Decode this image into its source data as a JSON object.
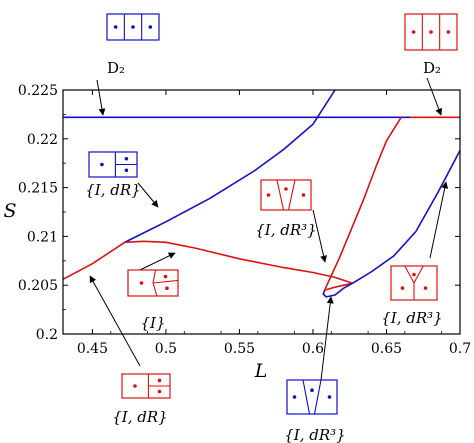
{
  "chart_data": {
    "type": "line",
    "xlabel": "L",
    "ylabel": "S",
    "xlim": [
      0.43,
      0.7
    ],
    "ylim": [
      0.2,
      0.225
    ],
    "x_ticks": [
      "0.45",
      "0.5",
      "0.55",
      "0.6",
      "0.65",
      "0.7"
    ],
    "y_ticks": [
      "0.2",
      "0.205",
      "0.21",
      "0.215",
      "0.22",
      "0.225"
    ],
    "x_tick_values": [
      0.45,
      0.5,
      0.55,
      0.6,
      0.65,
      0.7
    ],
    "y_tick_values": [
      0.2,
      0.205,
      0.21,
      0.215,
      0.22,
      0.225
    ],
    "grid": false,
    "colors": {
      "blue": "#1010c8",
      "red": "#e01010",
      "axis": "#000000"
    },
    "series": [
      {
        "color": "#1010c8",
        "points": [
          [
            0.43,
            0.2222
          ],
          [
            0.666,
            0.2222
          ]
        ]
      },
      {
        "color": "#e01010",
        "points": [
          [
            0.666,
            0.2222
          ],
          [
            0.7,
            0.2222
          ]
        ]
      },
      {
        "color": "#1010c8",
        "points": [
          [
            0.472,
            0.2094
          ],
          [
            0.5,
            0.2115
          ],
          [
            0.53,
            0.2139
          ],
          [
            0.56,
            0.2167
          ],
          [
            0.58,
            0.2189
          ],
          [
            0.6,
            0.2215
          ],
          [
            0.615,
            0.225
          ]
        ]
      },
      {
        "color": "#e01010",
        "points": [
          [
            0.43,
            0.2056
          ],
          [
            0.45,
            0.2072
          ],
          [
            0.472,
            0.2094
          ]
        ]
      },
      {
        "color": "#e01010",
        "points": [
          [
            0.472,
            0.2094
          ],
          [
            0.485,
            0.2095
          ],
          [
            0.5,
            0.2094
          ],
          [
            0.52,
            0.2088
          ],
          [
            0.55,
            0.2077
          ],
          [
            0.58,
            0.2068
          ],
          [
            0.6,
            0.2063
          ],
          [
            0.615,
            0.2058
          ],
          [
            0.627,
            0.2052
          ]
        ]
      },
      {
        "color": "#e01010",
        "points": [
          [
            0.627,
            0.2052
          ],
          [
            0.615,
            0.2048
          ],
          [
            0.608,
            0.2045
          ]
        ]
      },
      {
        "color": "#1010c8",
        "points": [
          [
            0.608,
            0.2045
          ],
          [
            0.607,
            0.2041
          ],
          [
            0.609,
            0.2038
          ],
          [
            0.615,
            0.204
          ],
          [
            0.621,
            0.2047
          ],
          [
            0.627,
            0.2052
          ]
        ]
      },
      {
        "color": "#e01010",
        "points": [
          [
            0.608,
            0.2045
          ],
          [
            0.611,
            0.2055
          ],
          [
            0.618,
            0.2078
          ],
          [
            0.626,
            0.2107
          ],
          [
            0.635,
            0.214
          ],
          [
            0.643,
            0.2172
          ],
          [
            0.65,
            0.2198
          ],
          [
            0.66,
            0.2222
          ]
        ]
      },
      {
        "color": "#1010c8",
        "points": [
          [
            0.627,
            0.2052
          ],
          [
            0.64,
            0.2064
          ],
          [
            0.655,
            0.208
          ],
          [
            0.67,
            0.2105
          ],
          [
            0.685,
            0.2145
          ],
          [
            0.7,
            0.2188
          ]
        ]
      }
    ],
    "insets": [
      {
        "id": "top-left-blue",
        "color": "#1010c8",
        "style": "three-cells"
      },
      {
        "id": "top-right-red",
        "color": "#e01010",
        "style": "three-cells"
      },
      {
        "id": "mid-left-blue",
        "color": "#1010c8",
        "style": "split-right"
      },
      {
        "id": "center-red",
        "color": "#e01010",
        "style": "bent-split"
      },
      {
        "id": "center-right-red",
        "color": "#e01010",
        "style": "v-split"
      },
      {
        "id": "right-red",
        "color": "#e01010",
        "style": "y-split"
      },
      {
        "id": "bottom-left-red",
        "color": "#e01010",
        "style": "split-right"
      },
      {
        "id": "bottom-center-blue",
        "color": "#1010c8",
        "style": "v-split"
      }
    ],
    "annotations": [
      {
        "id": "top-left-label",
        "text": "D₂",
        "italic": false
      },
      {
        "id": "top-right-label",
        "text": "D₂",
        "italic": false
      },
      {
        "id": "mid-left-label",
        "text": "{I, dR}",
        "italic": true
      },
      {
        "id": "center-label",
        "text": "{I}",
        "italic": true
      },
      {
        "id": "center-right-label",
        "text": "{I, dR³}",
        "italic": true
      },
      {
        "id": "right-label",
        "text": "{I, dR³}",
        "italic": true
      },
      {
        "id": "bottom-left-label",
        "text": "{I, dR}",
        "italic": true
      },
      {
        "id": "bottom-center-label",
        "text": "{I, dR³}",
        "italic": true
      }
    ]
  }
}
